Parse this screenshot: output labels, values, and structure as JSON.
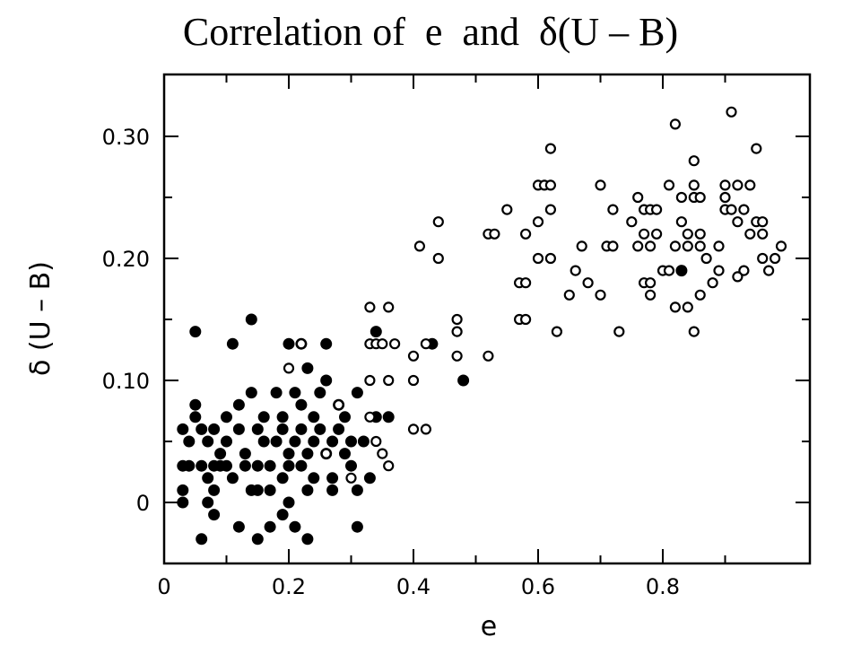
{
  "title": "Correlation of  e  and  δ(U – B)",
  "chart_data": {
    "type": "scatter",
    "title": "Correlation of  e  and  δ(U – B)",
    "xlabel": "e",
    "ylabel": "δ (U – B)",
    "xlim": [
      0,
      1.0
    ],
    "ylim": [
      -0.05,
      0.35
    ],
    "x_ticks": [
      0,
      0.2,
      0.4,
      0.6,
      0.8
    ],
    "x_tick_labels": [
      "0",
      "0.2",
      "0.4",
      "0.6",
      "0.8"
    ],
    "y_ticks": [
      0,
      0.1,
      0.2,
      0.3
    ],
    "y_tick_labels": [
      "0",
      "0.10",
      "0.20",
      "0.30"
    ],
    "grid": false,
    "legend": "none",
    "series": [
      {
        "marker": "filled-circle",
        "color": "#000000",
        "points": [
          [
            0.05,
            0.14
          ],
          [
            0.11,
            0.13
          ],
          [
            0.14,
            0.15
          ],
          [
            0.2,
            0.13
          ],
          [
            0.22,
            0.13
          ],
          [
            0.26,
            0.13
          ],
          [
            0.03,
            0.06
          ],
          [
            0.04,
            0.05
          ],
          [
            0.05,
            0.07
          ],
          [
            0.06,
            0.06
          ],
          [
            0.07,
            0.05
          ],
          [
            0.08,
            0.06
          ],
          [
            0.09,
            0.04
          ],
          [
            0.1,
            0.05
          ],
          [
            0.12,
            0.06
          ],
          [
            0.13,
            0.04
          ],
          [
            0.15,
            0.06
          ],
          [
            0.16,
            0.05
          ],
          [
            0.18,
            0.05
          ],
          [
            0.19,
            0.06
          ],
          [
            0.2,
            0.04
          ],
          [
            0.21,
            0.05
          ],
          [
            0.22,
            0.06
          ],
          [
            0.23,
            0.04
          ],
          [
            0.24,
            0.05
          ],
          [
            0.25,
            0.06
          ],
          [
            0.26,
            0.04
          ],
          [
            0.27,
            0.05
          ],
          [
            0.28,
            0.06
          ],
          [
            0.29,
            0.04
          ],
          [
            0.3,
            0.05
          ],
          [
            0.32,
            0.05
          ],
          [
            0.34,
            0.07
          ],
          [
            0.36,
            0.07
          ],
          [
            0.03,
            0.03
          ],
          [
            0.04,
            0.03
          ],
          [
            0.06,
            0.03
          ],
          [
            0.07,
            0.02
          ],
          [
            0.08,
            0.03
          ],
          [
            0.09,
            0.03
          ],
          [
            0.1,
            0.03
          ],
          [
            0.11,
            0.02
          ],
          [
            0.13,
            0.03
          ],
          [
            0.15,
            0.03
          ],
          [
            0.17,
            0.03
          ],
          [
            0.19,
            0.02
          ],
          [
            0.2,
            0.03
          ],
          [
            0.22,
            0.03
          ],
          [
            0.24,
            0.02
          ],
          [
            0.27,
            0.02
          ],
          [
            0.3,
            0.03
          ],
          [
            0.33,
            0.02
          ],
          [
            0.03,
            0.01
          ],
          [
            0.03,
            0.0
          ],
          [
            0.07,
            0.0
          ],
          [
            0.08,
            0.01
          ],
          [
            0.14,
            0.01
          ],
          [
            0.15,
            0.01
          ],
          [
            0.17,
            0.01
          ],
          [
            0.2,
            0.0
          ],
          [
            0.23,
            0.01
          ],
          [
            0.27,
            0.01
          ],
          [
            0.31,
            0.01
          ],
          [
            0.08,
            -0.01
          ],
          [
            0.12,
            -0.02
          ],
          [
            0.15,
            -0.03
          ],
          [
            0.17,
            -0.02
          ],
          [
            0.19,
            -0.01
          ],
          [
            0.21,
            -0.02
          ],
          [
            0.23,
            -0.03
          ],
          [
            0.06,
            -0.03
          ],
          [
            0.31,
            -0.02
          ],
          [
            0.14,
            0.09
          ],
          [
            0.18,
            0.09
          ],
          [
            0.21,
            0.09
          ],
          [
            0.25,
            0.09
          ],
          [
            0.28,
            0.08
          ],
          [
            0.31,
            0.09
          ],
          [
            0.12,
            0.08
          ],
          [
            0.16,
            0.07
          ],
          [
            0.19,
            0.07
          ],
          [
            0.22,
            0.08
          ],
          [
            0.24,
            0.07
          ],
          [
            0.29,
            0.07
          ],
          [
            0.05,
            0.08
          ],
          [
            0.1,
            0.07
          ],
          [
            0.26,
            0.1
          ],
          [
            0.23,
            0.11
          ],
          [
            0.34,
            0.14
          ],
          [
            0.43,
            0.13
          ],
          [
            0.48,
            0.1
          ],
          [
            0.83,
            0.19
          ]
        ]
      },
      {
        "marker": "open-circle",
        "color": "#000000",
        "points": [
          [
            0.2,
            0.11
          ],
          [
            0.22,
            0.13
          ],
          [
            0.26,
            0.04
          ],
          [
            0.28,
            0.08
          ],
          [
            0.33,
            0.07
          ],
          [
            0.34,
            0.05
          ],
          [
            0.35,
            0.04
          ],
          [
            0.3,
            0.02
          ],
          [
            0.36,
            0.03
          ],
          [
            0.33,
            0.16
          ],
          [
            0.36,
            0.16
          ],
          [
            0.33,
            0.13
          ],
          [
            0.34,
            0.13
          ],
          [
            0.35,
            0.13
          ],
          [
            0.37,
            0.13
          ],
          [
            0.33,
            0.1
          ],
          [
            0.36,
            0.1
          ],
          [
            0.42,
            0.13
          ],
          [
            0.4,
            0.12
          ],
          [
            0.4,
            0.1
          ],
          [
            0.4,
            0.06
          ],
          [
            0.42,
            0.06
          ],
          [
            0.41,
            0.21
          ],
          [
            0.44,
            0.2
          ],
          [
            0.44,
            0.23
          ],
          [
            0.47,
            0.15
          ],
          [
            0.47,
            0.14
          ],
          [
            0.47,
            0.12
          ],
          [
            0.52,
            0.12
          ],
          [
            0.52,
            0.22
          ],
          [
            0.53,
            0.22
          ],
          [
            0.55,
            0.24
          ],
          [
            0.57,
            0.18
          ],
          [
            0.58,
            0.18
          ],
          [
            0.57,
            0.15
          ],
          [
            0.58,
            0.15
          ],
          [
            0.58,
            0.22
          ],
          [
            0.6,
            0.23
          ],
          [
            0.6,
            0.2
          ],
          [
            0.6,
            0.26
          ],
          [
            0.61,
            0.26
          ],
          [
            0.62,
            0.29
          ],
          [
            0.62,
            0.26
          ],
          [
            0.62,
            0.24
          ],
          [
            0.62,
            0.2
          ],
          [
            0.63,
            0.14
          ],
          [
            0.65,
            0.17
          ],
          [
            0.66,
            0.19
          ],
          [
            0.67,
            0.21
          ],
          [
            0.68,
            0.18
          ],
          [
            0.7,
            0.17
          ],
          [
            0.7,
            0.26
          ],
          [
            0.71,
            0.21
          ],
          [
            0.72,
            0.21
          ],
          [
            0.72,
            0.24
          ],
          [
            0.73,
            0.14
          ],
          [
            0.75,
            0.23
          ],
          [
            0.76,
            0.21
          ],
          [
            0.76,
            0.25
          ],
          [
            0.77,
            0.24
          ],
          [
            0.77,
            0.22
          ],
          [
            0.78,
            0.21
          ],
          [
            0.78,
            0.24
          ],
          [
            0.77,
            0.18
          ],
          [
            0.78,
            0.18
          ],
          [
            0.78,
            0.17
          ],
          [
            0.79,
            0.22
          ],
          [
            0.79,
            0.24
          ],
          [
            0.8,
            0.19
          ],
          [
            0.81,
            0.26
          ],
          [
            0.81,
            0.19
          ],
          [
            0.82,
            0.21
          ],
          [
            0.82,
            0.31
          ],
          [
            0.82,
            0.16
          ],
          [
            0.83,
            0.23
          ],
          [
            0.83,
            0.25
          ],
          [
            0.84,
            0.22
          ],
          [
            0.84,
            0.16
          ],
          [
            0.84,
            0.21
          ],
          [
            0.85,
            0.26
          ],
          [
            0.85,
            0.25
          ],
          [
            0.85,
            0.28
          ],
          [
            0.85,
            0.14
          ],
          [
            0.86,
            0.22
          ],
          [
            0.86,
            0.21
          ],
          [
            0.86,
            0.25
          ],
          [
            0.86,
            0.17
          ],
          [
            0.87,
            0.2
          ],
          [
            0.88,
            0.18
          ],
          [
            0.89,
            0.21
          ],
          [
            0.89,
            0.19
          ],
          [
            0.9,
            0.25
          ],
          [
            0.9,
            0.24
          ],
          [
            0.9,
            0.26
          ],
          [
            0.91,
            0.32
          ],
          [
            0.91,
            0.24
          ],
          [
            0.92,
            0.23
          ],
          [
            0.92,
            0.26
          ],
          [
            0.93,
            0.24
          ],
          [
            0.93,
            0.19
          ],
          [
            0.94,
            0.22
          ],
          [
            0.94,
            0.26
          ],
          [
            0.95,
            0.23
          ],
          [
            0.95,
            0.29
          ],
          [
            0.96,
            0.22
          ],
          [
            0.96,
            0.2
          ],
          [
            0.97,
            0.19
          ],
          [
            0.98,
            0.2
          ],
          [
            0.99,
            0.21
          ],
          [
            0.96,
            0.23
          ],
          [
            0.92,
            0.185
          ]
        ]
      }
    ]
  }
}
